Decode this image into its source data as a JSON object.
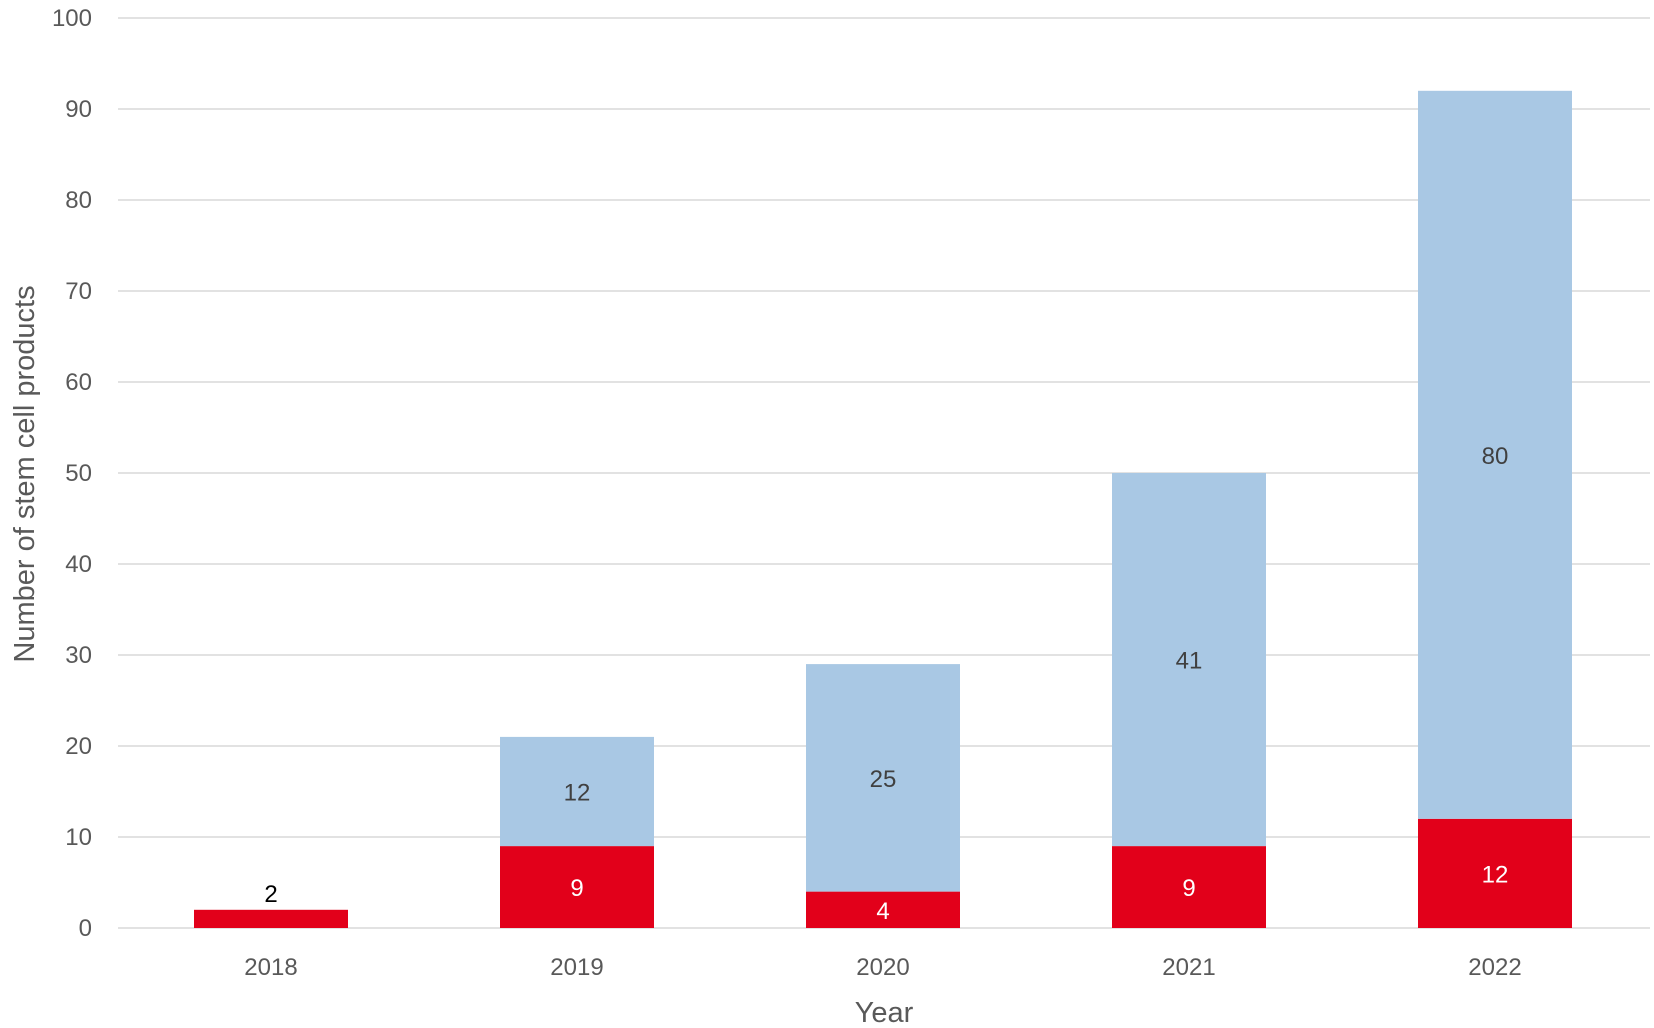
{
  "chart_data": {
    "type": "bar",
    "stacked": true,
    "categories": [
      "2018",
      "2019",
      "2020",
      "2021",
      "2022"
    ],
    "series": [
      {
        "values": [
          2,
          9,
          4,
          9,
          12
        ],
        "color": "#e2001a",
        "label_color": "#ffffff"
      },
      {
        "values": [
          0,
          12,
          25,
          41,
          80
        ],
        "color": "#a9c8e4",
        "label_color": "#404040"
      }
    ],
    "data_labels": [
      [
        "2",
        "9",
        "4",
        "9",
        "12"
      ],
      [
        "",
        "12",
        "25",
        "41",
        "80"
      ]
    ],
    "first_label_color": "#000000",
    "xlabel": "Year",
    "ylabel": "Number of stem cell products",
    "ylim": [
      0,
      100
    ],
    "yticks": [
      "0",
      "10",
      "20",
      "30",
      "40",
      "50",
      "60",
      "70",
      "80",
      "90",
      "100"
    ],
    "grid": true,
    "legend": "none",
    "gridline_color": "#d9d9d9"
  }
}
